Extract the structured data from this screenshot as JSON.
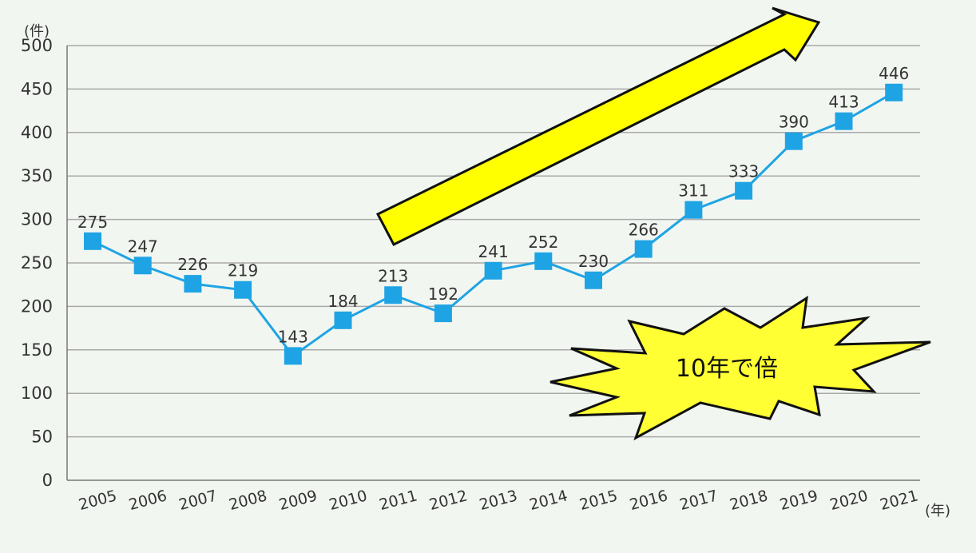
{
  "chart_data": {
    "type": "line",
    "y_unit": "(件)",
    "x_unit": "(年)",
    "categories": [
      "2005",
      "2006",
      "2007",
      "2008",
      "2009",
      "2010",
      "2011",
      "2012",
      "2013",
      "2014",
      "2015",
      "2016",
      "2017",
      "2018",
      "2019",
      "2020",
      "2021"
    ],
    "values": [
      275,
      247,
      226,
      219,
      143,
      184,
      213,
      192,
      241,
      252,
      230,
      266,
      311,
      333,
      390,
      413,
      446
    ],
    "ylim": [
      0,
      500
    ],
    "yticks": [
      "0",
      "50",
      "100",
      "150",
      "200",
      "250",
      "300",
      "350",
      "400",
      "450",
      "500"
    ],
    "grid": true,
    "annotation": "10年で倍",
    "colors": {
      "series": "#1ea4e4",
      "arrow_fill": "#ffff00",
      "burst_fill": "#ffff33",
      "grid": "#a9a9a9",
      "background": "#f2f6f1"
    }
  }
}
